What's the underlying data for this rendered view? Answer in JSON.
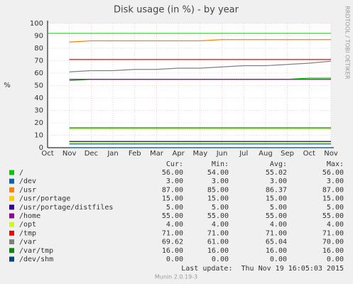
{
  "chart_data": {
    "type": "line",
    "title": "Disk usage (in %) - by year",
    "y_label": "%",
    "watermark": "RRDTOOL / TOBI OETIKER",
    "categories": [
      "Oct",
      "Nov",
      "Dec",
      "Jan",
      "Feb",
      "Mar",
      "Apr",
      "May",
      "Jun",
      "Jul",
      "Aug",
      "Sep",
      "Oct",
      "Nov"
    ],
    "ylim": [
      0,
      100
    ],
    "yticks": [
      0,
      10,
      20,
      30,
      40,
      50,
      60,
      70,
      80,
      90,
      100
    ],
    "grid": true,
    "reference_lines": [
      {
        "value": 92,
        "color": "#00cc00"
      }
    ],
    "series": [
      {
        "name": "/",
        "color": "#00cc00",
        "values": [
          null,
          54,
          55,
          55,
          55,
          55,
          55,
          55,
          55,
          55,
          55,
          55,
          56,
          56
        ]
      },
      {
        "name": "/dev",
        "color": "#0066b3",
        "values": [
          null,
          3,
          3,
          3,
          3,
          3,
          3,
          3,
          3,
          3,
          3,
          3,
          3,
          3
        ]
      },
      {
        "name": "/usr",
        "color": "#ff8000",
        "values": [
          null,
          85,
          86,
          86,
          86,
          86,
          86,
          86,
          87,
          87,
          87,
          87,
          87,
          87
        ]
      },
      {
        "name": "/usr/portage",
        "color": "#ffcc00",
        "values": [
          null,
          15,
          15,
          15,
          15,
          15,
          15,
          15,
          15,
          15,
          15,
          15,
          15,
          15
        ]
      },
      {
        "name": "/usr/portage/distfiles",
        "color": "#330099",
        "values": [
          null,
          5,
          5,
          5,
          5,
          5,
          5,
          5,
          5,
          5,
          5,
          5,
          5,
          5
        ]
      },
      {
        "name": "/home",
        "color": "#990099",
        "values": [
          null,
          55,
          55,
          55,
          55,
          55,
          55,
          55,
          55,
          55,
          55,
          55,
          55,
          55
        ]
      },
      {
        "name": "/opt",
        "color": "#ccff00",
        "values": [
          null,
          4,
          4,
          4,
          4,
          4,
          4,
          4,
          4,
          4,
          4,
          4,
          4,
          4
        ]
      },
      {
        "name": "/tmp",
        "color": "#ff0000",
        "values": [
          null,
          71,
          71,
          71,
          71,
          71,
          71,
          71,
          71,
          71,
          71,
          71,
          71,
          71
        ]
      },
      {
        "name": "/var",
        "color": "#808080",
        "values": [
          null,
          61,
          62,
          62,
          63,
          63,
          64,
          64,
          65,
          66,
          66,
          67,
          68,
          69.62
        ]
      },
      {
        "name": "/var/tmp",
        "color": "#008f00",
        "values": [
          null,
          16,
          16,
          16,
          16,
          16,
          16,
          16,
          16,
          16,
          16,
          16,
          16,
          16
        ]
      },
      {
        "name": "/dev/shm",
        "color": "#00487d",
        "values": [
          null,
          0,
          0,
          0,
          0,
          0,
          0,
          0,
          0,
          0,
          0,
          0,
          0,
          0
        ]
      }
    ],
    "legend_headers": [
      "Cur:",
      "Min:",
      "Avg:",
      "Max:"
    ],
    "legend_values": [
      [
        "56.00",
        "54.00",
        "55.02",
        "56.00"
      ],
      [
        "3.00",
        "3.00",
        "3.00",
        "3.00"
      ],
      [
        "87.00",
        "85.00",
        "86.37",
        "87.00"
      ],
      [
        "15.00",
        "15.00",
        "15.00",
        "15.00"
      ],
      [
        "5.00",
        "5.00",
        "5.00",
        "5.00"
      ],
      [
        "55.00",
        "55.00",
        "55.00",
        "55.00"
      ],
      [
        "4.00",
        "4.00",
        "4.00",
        "4.00"
      ],
      [
        "71.00",
        "71.00",
        "71.00",
        "71.00"
      ],
      [
        "69.62",
        "61.00",
        "65.04",
        "70.00"
      ],
      [
        "16.00",
        "16.00",
        "16.00",
        "16.00"
      ],
      [
        "0.00",
        "0.00",
        "0.00",
        "0.00"
      ]
    ],
    "last_update": "Last update:  Thu Nov 19 16:05:03 2015",
    "footer": "Munin 2.0.19-3"
  }
}
